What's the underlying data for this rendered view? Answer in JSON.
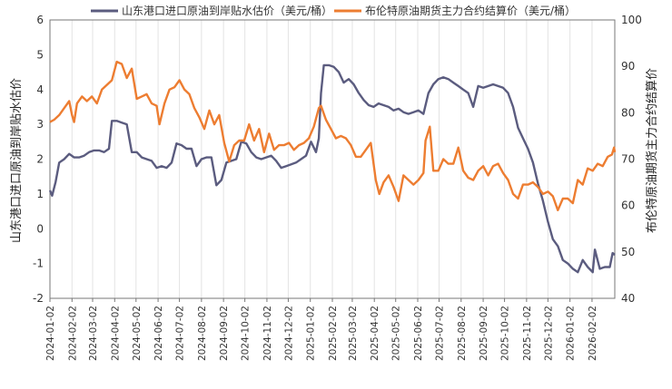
{
  "chart_data": {
    "type": "line",
    "x_start": "2024-01-02",
    "x_end": "2026-03-06",
    "x_tick_labels": [
      "2024-01-02",
      "2024-02-02",
      "2024-03-02",
      "2024-04-02",
      "2024-05-02",
      "2024-06-02",
      "2024-07-02",
      "2024-08-02",
      "2024-09-02",
      "2024-10-02",
      "2024-11-02",
      "2024-12-02",
      "2025-01-02",
      "2025-02-02",
      "2025-03-02",
      "2025-04-02",
      "2025-05-02",
      "2025-06-02",
      "2025-07-02",
      "2025-08-02",
      "2025-09-02",
      "2025-10-02",
      "2025-11-02",
      "2025-12-02",
      "2026-01-02",
      "2026-02-02"
    ],
    "y_left": {
      "label": "山东港口进口原油到岸贴水估价",
      "min": -2,
      "max": 6,
      "ticks": [
        "-2",
        "-1",
        "0",
        "1",
        "2",
        "3",
        "4",
        "5",
        "6"
      ]
    },
    "y_right": {
      "label": "布伦特原油期货主力合约结算价",
      "min": 40,
      "max": 100,
      "ticks": [
        "40",
        "50",
        "60",
        "70",
        "80",
        "90",
        "100"
      ]
    },
    "grid": "vertical",
    "legend_position": "top",
    "series": [
      {
        "name": "山东港口进口原油到岸贴水估价（美元/桶）",
        "axis": "left",
        "color": "#5b5c7f",
        "points": [
          [
            "2024-01-02",
            1.1
          ],
          [
            "2024-01-05",
            0.95
          ],
          [
            "2024-01-10",
            1.35
          ],
          [
            "2024-01-15",
            1.9
          ],
          [
            "2024-01-22",
            2.0
          ],
          [
            "2024-01-29",
            2.15
          ],
          [
            "2024-02-05",
            2.05
          ],
          [
            "2024-02-12",
            2.05
          ],
          [
            "2024-02-19",
            2.1
          ],
          [
            "2024-02-26",
            2.2
          ],
          [
            "2024-03-04",
            2.25
          ],
          [
            "2024-03-11",
            2.25
          ],
          [
            "2024-03-18",
            2.2
          ],
          [
            "2024-03-25",
            2.3
          ],
          [
            "2024-03-29",
            3.1
          ],
          [
            "2024-04-05",
            3.1
          ],
          [
            "2024-04-12",
            3.05
          ],
          [
            "2024-04-19",
            3.0
          ],
          [
            "2024-04-26",
            2.2
          ],
          [
            "2024-05-03",
            2.2
          ],
          [
            "2024-05-10",
            2.05
          ],
          [
            "2024-05-17",
            2.0
          ],
          [
            "2024-05-24",
            1.95
          ],
          [
            "2024-05-31",
            1.75
          ],
          [
            "2024-06-07",
            1.8
          ],
          [
            "2024-06-14",
            1.75
          ],
          [
            "2024-06-21",
            1.9
          ],
          [
            "2024-06-28",
            2.45
          ],
          [
            "2024-07-05",
            2.4
          ],
          [
            "2024-07-12",
            2.3
          ],
          [
            "2024-07-19",
            2.3
          ],
          [
            "2024-07-26",
            1.8
          ],
          [
            "2024-08-02",
            2.0
          ],
          [
            "2024-08-09",
            2.05
          ],
          [
            "2024-08-16",
            2.05
          ],
          [
            "2024-08-23",
            1.25
          ],
          [
            "2024-08-30",
            1.4
          ],
          [
            "2024-09-06",
            1.9
          ],
          [
            "2024-09-13",
            1.95
          ],
          [
            "2024-09-20",
            2.0
          ],
          [
            "2024-09-27",
            2.5
          ],
          [
            "2024-10-04",
            2.45
          ],
          [
            "2024-10-11",
            2.2
          ],
          [
            "2024-10-18",
            2.05
          ],
          [
            "2024-10-25",
            2.0
          ],
          [
            "2024-11-01",
            2.05
          ],
          [
            "2024-11-08",
            2.1
          ],
          [
            "2024-11-15",
            1.95
          ],
          [
            "2024-11-22",
            1.75
          ],
          [
            "2024-11-29",
            1.8
          ],
          [
            "2024-12-06",
            1.85
          ],
          [
            "2024-12-13",
            1.9
          ],
          [
            "2024-12-20",
            2.0
          ],
          [
            "2024-12-27",
            2.1
          ],
          [
            "2025-01-03",
            2.5
          ],
          [
            "2025-01-10",
            2.2
          ],
          [
            "2025-01-14",
            2.6
          ],
          [
            "2025-01-17",
            3.9
          ],
          [
            "2025-01-21",
            4.7
          ],
          [
            "2025-01-28",
            4.7
          ],
          [
            "2025-02-04",
            4.65
          ],
          [
            "2025-02-11",
            4.5
          ],
          [
            "2025-02-18",
            4.2
          ],
          [
            "2025-02-25",
            4.3
          ],
          [
            "2025-03-04",
            4.15
          ],
          [
            "2025-03-11",
            3.9
          ],
          [
            "2025-03-18",
            3.7
          ],
          [
            "2025-03-25",
            3.55
          ],
          [
            "2025-04-01",
            3.5
          ],
          [
            "2025-04-08",
            3.6
          ],
          [
            "2025-04-15",
            3.55
          ],
          [
            "2025-04-22",
            3.5
          ],
          [
            "2025-04-29",
            3.4
          ],
          [
            "2025-05-06",
            3.45
          ],
          [
            "2025-05-13",
            3.35
          ],
          [
            "2025-05-20",
            3.3
          ],
          [
            "2025-05-27",
            3.35
          ],
          [
            "2025-06-03",
            3.4
          ],
          [
            "2025-06-10",
            3.3
          ],
          [
            "2025-06-17",
            3.9
          ],
          [
            "2025-06-24",
            4.15
          ],
          [
            "2025-07-01",
            4.3
          ],
          [
            "2025-07-08",
            4.35
          ],
          [
            "2025-07-15",
            4.3
          ],
          [
            "2025-07-22",
            4.2
          ],
          [
            "2025-07-29",
            4.1
          ],
          [
            "2025-08-05",
            4.0
          ],
          [
            "2025-08-12",
            3.9
          ],
          [
            "2025-08-19",
            3.5
          ],
          [
            "2025-08-26",
            4.1
          ],
          [
            "2025-09-02",
            4.05
          ],
          [
            "2025-09-09",
            4.1
          ],
          [
            "2025-09-16",
            4.15
          ],
          [
            "2025-09-23",
            4.1
          ],
          [
            "2025-09-30",
            4.05
          ],
          [
            "2025-10-07",
            3.9
          ],
          [
            "2025-10-14",
            3.5
          ],
          [
            "2025-10-21",
            2.9
          ],
          [
            "2025-10-28",
            2.6
          ],
          [
            "2025-11-04",
            2.3
          ],
          [
            "2025-11-11",
            1.9
          ],
          [
            "2025-11-18",
            1.3
          ],
          [
            "2025-11-25",
            0.8
          ],
          [
            "2025-12-02",
            0.2
          ],
          [
            "2025-12-09",
            -0.3
          ],
          [
            "2025-12-16",
            -0.5
          ],
          [
            "2025-12-23",
            -0.9
          ],
          [
            "2025-12-30",
            -1.0
          ],
          [
            "2026-01-06",
            -1.15
          ],
          [
            "2026-01-13",
            -1.25
          ],
          [
            "2026-01-20",
            -0.9
          ],
          [
            "2026-01-27",
            -1.1
          ],
          [
            "2026-02-03",
            -1.25
          ],
          [
            "2026-02-06",
            -0.6
          ],
          [
            "2026-02-13",
            -1.15
          ],
          [
            "2026-02-20",
            -1.1
          ],
          [
            "2026-02-27",
            -1.1
          ],
          [
            "2026-03-03",
            -0.7
          ],
          [
            "2026-03-06",
            -0.75
          ]
        ]
      },
      {
        "name": "布伦特原油期货主力合约结算价（美元/桶）",
        "axis": "right",
        "color": "#ed7d31",
        "points": [
          [
            "2024-01-02",
            78.0
          ],
          [
            "2024-01-08",
            78.5
          ],
          [
            "2024-01-15",
            79.5
          ],
          [
            "2024-01-22",
            81.0
          ],
          [
            "2024-01-29",
            82.5
          ],
          [
            "2024-02-02",
            79.5
          ],
          [
            "2024-02-05",
            78.0
          ],
          [
            "2024-02-09",
            82.0
          ],
          [
            "2024-02-16",
            83.5
          ],
          [
            "2024-02-23",
            82.5
          ],
          [
            "2024-03-01",
            83.5
          ],
          [
            "2024-03-08",
            82.0
          ],
          [
            "2024-03-15",
            85.0
          ],
          [
            "2024-03-22",
            86.0
          ],
          [
            "2024-03-29",
            87.0
          ],
          [
            "2024-04-05",
            91.0
          ],
          [
            "2024-04-12",
            90.5
          ],
          [
            "2024-04-19",
            87.5
          ],
          [
            "2024-04-26",
            89.5
          ],
          [
            "2024-05-03",
            83.0
          ],
          [
            "2024-05-10",
            83.5
          ],
          [
            "2024-05-17",
            84.0
          ],
          [
            "2024-05-24",
            82.0
          ],
          [
            "2024-05-31",
            81.5
          ],
          [
            "2024-06-04",
            77.5
          ],
          [
            "2024-06-11",
            82.0
          ],
          [
            "2024-06-18",
            85.0
          ],
          [
            "2024-06-25",
            85.5
          ],
          [
            "2024-07-02",
            87.0
          ],
          [
            "2024-07-09",
            85.0
          ],
          [
            "2024-07-16",
            84.0
          ],
          [
            "2024-07-23",
            81.0
          ],
          [
            "2024-07-30",
            79.0
          ],
          [
            "2024-08-06",
            76.5
          ],
          [
            "2024-08-13",
            80.5
          ],
          [
            "2024-08-20",
            77.5
          ],
          [
            "2024-08-27",
            79.5
          ],
          [
            "2024-09-03",
            73.5
          ],
          [
            "2024-09-10",
            69.5
          ],
          [
            "2024-09-17",
            73.0
          ],
          [
            "2024-09-24",
            74.0
          ],
          [
            "2024-10-01",
            74.0
          ],
          [
            "2024-10-08",
            77.5
          ],
          [
            "2024-10-15",
            74.0
          ],
          [
            "2024-10-22",
            76.5
          ],
          [
            "2024-10-29",
            71.5
          ],
          [
            "2024-11-05",
            75.5
          ],
          [
            "2024-11-12",
            72.0
          ],
          [
            "2024-11-19",
            73.0
          ],
          [
            "2024-11-26",
            73.0
          ],
          [
            "2024-12-03",
            73.5
          ],
          [
            "2024-12-10",
            72.0
          ],
          [
            "2024-12-17",
            73.0
          ],
          [
            "2024-12-24",
            73.5
          ],
          [
            "2024-12-31",
            74.5
          ],
          [
            "2025-01-07",
            77.0
          ],
          [
            "2025-01-14",
            81.0
          ],
          [
            "2025-01-17",
            81.5
          ],
          [
            "2025-01-24",
            78.5
          ],
          [
            "2025-01-31",
            76.5
          ],
          [
            "2025-02-07",
            74.5
          ],
          [
            "2025-02-14",
            75.0
          ],
          [
            "2025-02-21",
            74.5
          ],
          [
            "2025-02-28",
            73.0
          ],
          [
            "2025-03-07",
            70.5
          ],
          [
            "2025-03-14",
            70.5
          ],
          [
            "2025-03-21",
            72.0
          ],
          [
            "2025-03-28",
            73.5
          ],
          [
            "2025-04-04",
            65.5
          ],
          [
            "2025-04-09",
            62.5
          ],
          [
            "2025-04-15",
            65.0
          ],
          [
            "2025-04-22",
            66.5
          ],
          [
            "2025-04-29",
            64.0
          ],
          [
            "2025-05-06",
            61.0
          ],
          [
            "2025-05-13",
            66.5
          ],
          [
            "2025-05-20",
            65.5
          ],
          [
            "2025-05-27",
            64.5
          ],
          [
            "2025-06-03",
            65.5
          ],
          [
            "2025-06-10",
            67.0
          ],
          [
            "2025-06-13",
            74.0
          ],
          [
            "2025-06-19",
            77.0
          ],
          [
            "2025-06-24",
            67.5
          ],
          [
            "2025-07-01",
            67.5
          ],
          [
            "2025-07-08",
            70.0
          ],
          [
            "2025-07-15",
            69.0
          ],
          [
            "2025-07-22",
            69.0
          ],
          [
            "2025-07-29",
            72.5
          ],
          [
            "2025-08-05",
            67.5
          ],
          [
            "2025-08-12",
            66.0
          ],
          [
            "2025-08-19",
            65.5
          ],
          [
            "2025-08-26",
            67.5
          ],
          [
            "2025-09-02",
            68.5
          ],
          [
            "2025-09-09",
            66.5
          ],
          [
            "2025-09-16",
            68.5
          ],
          [
            "2025-09-23",
            69.0
          ],
          [
            "2025-09-30",
            67.0
          ],
          [
            "2025-10-07",
            65.5
          ],
          [
            "2025-10-14",
            62.5
          ],
          [
            "2025-10-21",
            61.5
          ],
          [
            "2025-10-28",
            64.5
          ],
          [
            "2025-11-04",
            64.5
          ],
          [
            "2025-11-11",
            65.0
          ],
          [
            "2025-11-18",
            64.0
          ],
          [
            "2025-11-25",
            62.5
          ],
          [
            "2025-12-02",
            63.0
          ],
          [
            "2025-12-09",
            62.0
          ],
          [
            "2025-12-16",
            59.0
          ],
          [
            "2025-12-23",
            61.5
          ],
          [
            "2025-12-30",
            61.5
          ],
          [
            "2026-01-06",
            60.5
          ],
          [
            "2026-01-13",
            65.5
          ],
          [
            "2026-01-20",
            64.5
          ],
          [
            "2026-01-27",
            68.0
          ],
          [
            "2026-02-03",
            67.5
          ],
          [
            "2026-02-10",
            69.0
          ],
          [
            "2026-02-17",
            68.5
          ],
          [
            "2026-02-24",
            70.5
          ],
          [
            "2026-03-02",
            71.0
          ],
          [
            "2026-03-05",
            72.5
          ],
          [
            "2026-03-06",
            71.5
          ]
        ]
      }
    ]
  }
}
